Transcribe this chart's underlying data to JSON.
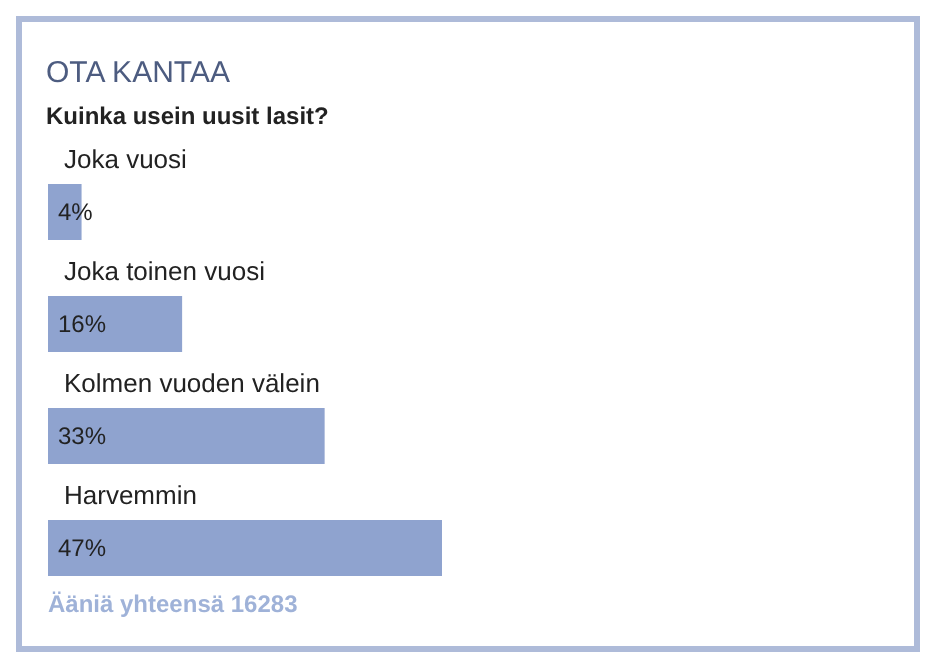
{
  "chart_data": {
    "type": "bar",
    "orientation": "horizontal",
    "title": "OTA KANTAA",
    "subtitle": "Kuinka usein uusit lasit?",
    "categories": [
      "Joka vuosi",
      "Joka toinen vuosi",
      "Kolmen vuoden välein",
      "Harvemmin"
    ],
    "values": [
      4,
      16,
      33,
      47
    ],
    "value_labels": [
      "4%",
      "16%",
      "33%",
      "47%"
    ],
    "color": "#8fa3cf",
    "tick_labels": "y",
    "annotations": [
      "Ääniä yhteensä 16283"
    ]
  }
}
